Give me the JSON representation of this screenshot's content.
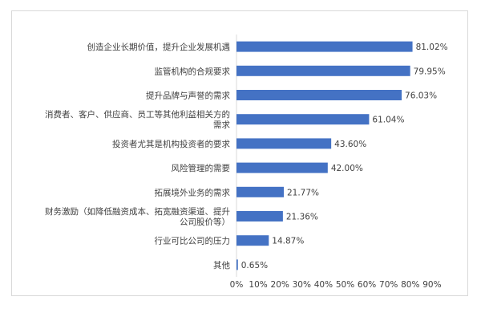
{
  "chart_data": {
    "type": "bar",
    "orientation": "horizontal",
    "title": "",
    "xlabel": "",
    "ylabel": "",
    "xlim": [
      0,
      90
    ],
    "grid": false,
    "legend": "none",
    "bar_color": "#4472c4",
    "categories": [
      [
        "创造企业长期价值，提升企业发展机遇"
      ],
      [
        "监管机构的合规要求"
      ],
      [
        "提升品牌与声誉的需求"
      ],
      [
        "消费者、客户、供应商、员工等其他利益相关方的",
        "需求"
      ],
      [
        "投资者尤其是机构投资者的要求"
      ],
      [
        "风险管理的需要"
      ],
      [
        "拓展境外业务的需求"
      ],
      [
        "财务激励（如降低融资成本、拓宽融资渠道、提升",
        "公司股价等）"
      ],
      [
        "行业可比公司的压力"
      ],
      [
        "其他"
      ]
    ],
    "values": [
      81.02,
      79.95,
      76.03,
      61.04,
      43.6,
      42.0,
      21.77,
      21.36,
      14.87,
      0.65
    ],
    "value_labels": [
      "81.02%",
      "79.95%",
      "76.03%",
      "61.04%",
      "43.60%",
      "42.00%",
      "21.77%",
      "21.36%",
      "14.87%",
      "0.65%"
    ],
    "x_ticks": [
      0,
      10,
      20,
      30,
      40,
      50,
      60,
      70,
      80,
      90
    ],
    "x_tick_labels": [
      "0%",
      "10%",
      "20%",
      "30%",
      "40%",
      "50%",
      "60%",
      "70%",
      "80%",
      "90%"
    ]
  }
}
